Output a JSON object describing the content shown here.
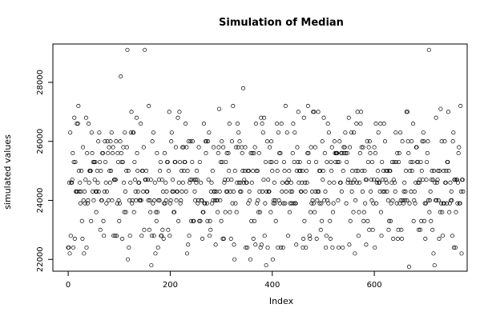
{
  "chart_data": {
    "type": "scatter",
    "title": "Simulation of Median",
    "xlabel": "Index",
    "ylabel": "simulated values",
    "xlim": [
      -30,
      782
    ],
    "ylim": [
      21600,
      29300
    ],
    "xticks": [
      0,
      200,
      400,
      600
    ],
    "yticks": [
      22000,
      24000,
      26000,
      28000
    ],
    "grid": false,
    "marker": "open-circle",
    "n_points": 775,
    "seed": 12345,
    "distribution": {
      "levels": [
        21800,
        22000,
        22200,
        22400,
        22500,
        22700,
        22800,
        23000,
        23300,
        23600,
        23900,
        24000,
        24300,
        24600,
        24700,
        25000,
        25300,
        25600,
        25800,
        26000,
        26300,
        26600,
        26800,
        27000,
        27200,
        28200,
        29100
      ],
      "weights": [
        1,
        3,
        5,
        22,
        10,
        26,
        20,
        18,
        28,
        32,
        60,
        58,
        62,
        68,
        40,
        55,
        48,
        42,
        30,
        30,
        28,
        16,
        12,
        10,
        4,
        1,
        1
      ]
    },
    "extremes": [
      {
        "x": 150,
        "y": 29100
      },
      {
        "x": 103,
        "y": 28200
      },
      {
        "x": 343,
        "y": 27800
      },
      {
        "x": 158,
        "y": 27200
      },
      {
        "x": 296,
        "y": 27100
      },
      {
        "x": 730,
        "y": 27100
      },
      {
        "x": 663,
        "y": 27000
      },
      {
        "x": 668,
        "y": 21750
      },
      {
        "x": 326,
        "y": 22000
      },
      {
        "x": 401,
        "y": 22000
      },
      {
        "x": 3,
        "y": 22200
      }
    ]
  }
}
